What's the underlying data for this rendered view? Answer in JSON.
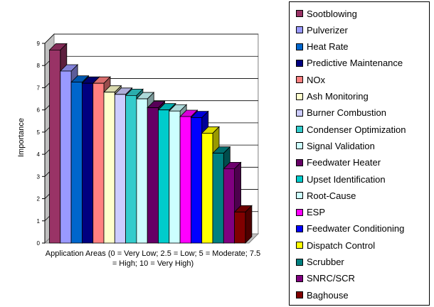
{
  "chart_data": {
    "type": "bar",
    "title": "",
    "xlabel": "Application Areas (0 = Very Low; 2.5 = Low; 5 = Moderate; 7.5 = High; 10 = Very High)",
    "ylabel": "Importance",
    "ylim": [
      0,
      9
    ],
    "yticks": [
      "0",
      "1",
      "2",
      "3",
      "4",
      "5",
      "6",
      "7",
      "8",
      "9"
    ],
    "grid": true,
    "legend_position": "right",
    "three_d": true,
    "categories": [
      "Sootblowing",
      "Pulverizer",
      "Heat Rate",
      "Predictive Maintenance",
      "NOx",
      "Ash Monitoring",
      "Burner Combustion",
      "Condenser Optimization",
      "Signal Validation",
      "Feedwater Heater",
      "Upset Identification",
      "Root-Cause",
      "ESP",
      "Feedwater Conditioning",
      "Dispatch Control",
      "Scrubber",
      "SNRC/SCR",
      "Baghouse"
    ],
    "values": [
      8.7,
      7.75,
      7.25,
      7.2,
      7.2,
      6.8,
      6.7,
      6.65,
      6.5,
      6.1,
      6.0,
      5.95,
      5.7,
      5.65,
      4.95,
      4.05,
      3.35,
      1.4
    ],
    "colors": [
      "#993366",
      "#9999FF",
      "#0066CC",
      "#000080",
      "#FF8080",
      "#FFFFCC",
      "#CCCCFF",
      "#33CCCC",
      "#CCFFFF",
      "#660066",
      "#00CCCC",
      "#CCFFFF",
      "#FF00FF",
      "#0000FF",
      "#FFFF00",
      "#008080",
      "#800080",
      "#800000"
    ]
  }
}
